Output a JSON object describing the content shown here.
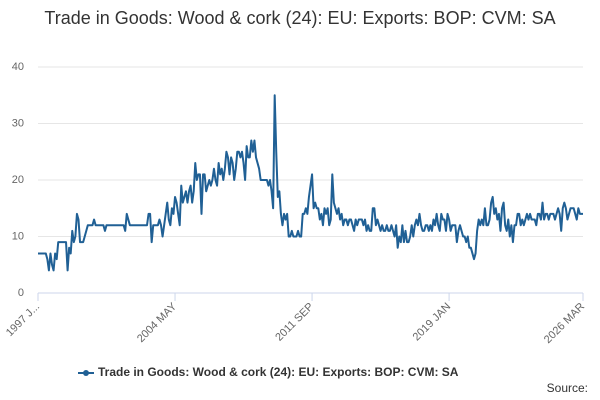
{
  "chart_data": {
    "type": "line",
    "title": "Trade in Goods: Wood & cork (24): EU: Exports: BOP: CVM: SA",
    "source": "Source:",
    "categories": [
      "1997 J...",
      null,
      null,
      null,
      null,
      null,
      null,
      null,
      null,
      null,
      null,
      null,
      null,
      null,
      null,
      null,
      null,
      null,
      null,
      null,
      null,
      null,
      null,
      null,
      null,
      null,
      null,
      null,
      null,
      null,
      null,
      null,
      null,
      null,
      null,
      null,
      null,
      null,
      null,
      null,
      null,
      null,
      null,
      null,
      null,
      null,
      null,
      null,
      null,
      null,
      null,
      null,
      null,
      null,
      null,
      null,
      null,
      null,
      null,
      null,
      null,
      null,
      null,
      null,
      null,
      null,
      null,
      null,
      null,
      null,
      null,
      null,
      null,
      null,
      null,
      null,
      null,
      null,
      null,
      null,
      null,
      null,
      null,
      null,
      null,
      null,
      null,
      null,
      "2004 MAY",
      null,
      null,
      null,
      null,
      null,
      null,
      null,
      null,
      null,
      null,
      null,
      null,
      null,
      null,
      null,
      null,
      null,
      null,
      null,
      null,
      null,
      null,
      null,
      null,
      null,
      null,
      null,
      null,
      null,
      null,
      null,
      null,
      null,
      null,
      null,
      null,
      null,
      null,
      null,
      null,
      null,
      null,
      null,
      null,
      null,
      null,
      null,
      null,
      null,
      null,
      null,
      null,
      null,
      null,
      null,
      null,
      null,
      null,
      null,
      null,
      null,
      null,
      null,
      null,
      null,
      null,
      null,
      null,
      null,
      null,
      null,
      null,
      null,
      null,
      null,
      null,
      null,
      null,
      null,
      null,
      null,
      null,
      null,
      null,
      null,
      null,
      null,
      "2011 SEP",
      null,
      null,
      null,
      null,
      null,
      null,
      null,
      null,
      null,
      null,
      null,
      null,
      null,
      null,
      null,
      null,
      null,
      null,
      null,
      null,
      null,
      null,
      null,
      null,
      null,
      null,
      null,
      null,
      null,
      null,
      null,
      null,
      null,
      null,
      null,
      null,
      null,
      null,
      null,
      null,
      null,
      null,
      null,
      null,
      null,
      null,
      null,
      null,
      null,
      null,
      null,
      null,
      null,
      null,
      null,
      null,
      null,
      null,
      null,
      null,
      null,
      null,
      null,
      null,
      null,
      null,
      null,
      null,
      null,
      null,
      null,
      null,
      null,
      null,
      null,
      null,
      null,
      null,
      null,
      null,
      null,
      null,
      null,
      null,
      null,
      null,
      null,
      "2019 JAN",
      null,
      null,
      null,
      null,
      null,
      null,
      null,
      null,
      null,
      null,
      null,
      null,
      null,
      null,
      null,
      null,
      null,
      null,
      null,
      null,
      null,
      null,
      null,
      null,
      null,
      null,
      null,
      null,
      null,
      null,
      null,
      null,
      null,
      null,
      null,
      null,
      null,
      null,
      null,
      null,
      null,
      null,
      null,
      null,
      null,
      null,
      null,
      null,
      null,
      null,
      null,
      null,
      null,
      null,
      null,
      null,
      null,
      null,
      null,
      null,
      null,
      null,
      null,
      null,
      null,
      null,
      null,
      null,
      null,
      null,
      null,
      null,
      null,
      null,
      null,
      null,
      null,
      null,
      null,
      null,
      null,
      null,
      null,
      null,
      null,
      "2026 MAR"
    ],
    "series": [
      {
        "name": "Trade in Goods: Wood & cork (24): EU: Exports: BOP: CVM: SA",
        "color": "#206095",
        "values": [
          7,
          7,
          7,
          7,
          7,
          7,
          6,
          4,
          7,
          5,
          4,
          7,
          6,
          9,
          9,
          9,
          9,
          9,
          9,
          4,
          8,
          7,
          11,
          9,
          10,
          14,
          13,
          9,
          9,
          9,
          10,
          11,
          12,
          12,
          12,
          12,
          13,
          12,
          12,
          12,
          12,
          12,
          12,
          11,
          12,
          12,
          12,
          12,
          12,
          12,
          12,
          12,
          12,
          12,
          12,
          12,
          11,
          14,
          13,
          12,
          12,
          12,
          12,
          12,
          12,
          12,
          12,
          12,
          12,
          12,
          12,
          14,
          14,
          9,
          12,
          12,
          12,
          12,
          13,
          12,
          10,
          12,
          14,
          16,
          13,
          12,
          15,
          14,
          17,
          16,
          14,
          12,
          19,
          16,
          17,
          18,
          16,
          18,
          19,
          16,
          18,
          23,
          20,
          21,
          21,
          14,
          21,
          21,
          18,
          19,
          20,
          19,
          20,
          22,
          20,
          19,
          23,
          21,
          22,
          20,
          22,
          25,
          24,
          21,
          24,
          23,
          20,
          22,
          25,
          25,
          24,
          25,
          23,
          20,
          26,
          24,
          24,
          27,
          25,
          27,
          24,
          23,
          22,
          20,
          20,
          20,
          20,
          20,
          19,
          20,
          18,
          15,
          35,
          25,
          17,
          18,
          14,
          12,
          14,
          13,
          14,
          10,
          10,
          11,
          10,
          10,
          10,
          11,
          10,
          10,
          14,
          14,
          15,
          14,
          17,
          19,
          21,
          15,
          16,
          15,
          15,
          13,
          14,
          12,
          15,
          14,
          15,
          12,
          13,
          21,
          16,
          15,
          14,
          15,
          13,
          14,
          12,
          13,
          13,
          12,
          13,
          13,
          12,
          11,
          13,
          12,
          13,
          13,
          13,
          12,
          13,
          11,
          12,
          11,
          11,
          15,
          15,
          12,
          13,
          12,
          11,
          12,
          11,
          11,
          12,
          11,
          11,
          12,
          11,
          10,
          12,
          8,
          10,
          9,
          12,
          9,
          11,
          9,
          9,
          10,
          12,
          10,
          12,
          13,
          12,
          14,
          12,
          11,
          11,
          12,
          12,
          11,
          12,
          11,
          13,
          12,
          14,
          12,
          11,
          14,
          13,
          13,
          11,
          14,
          13,
          11,
          12,
          12,
          12,
          9,
          11,
          12,
          11,
          10,
          10,
          9,
          10,
          8,
          8,
          7,
          6,
          7,
          11,
          13,
          12,
          13,
          12,
          15,
          12,
          12,
          13,
          16,
          17,
          14,
          15,
          13,
          14,
          11,
          15,
          16,
          12,
          11,
          13,
          10,
          12,
          9,
          12,
          12,
          14,
          14,
          12,
          13,
          12,
          13,
          14,
          13,
          14,
          13,
          13,
          13,
          12,
          14,
          14,
          13,
          16,
          13,
          14,
          14,
          13,
          14,
          14,
          14,
          13,
          14,
          15,
          14,
          11,
          15,
          16,
          15,
          13,
          14,
          15,
          15,
          15,
          14,
          13,
          15,
          14,
          14,
          14
        ]
      }
    ],
    "ylim": [
      0,
      40
    ],
    "yticks": [
      0,
      10,
      20,
      30,
      40
    ],
    "grid": true
  }
}
